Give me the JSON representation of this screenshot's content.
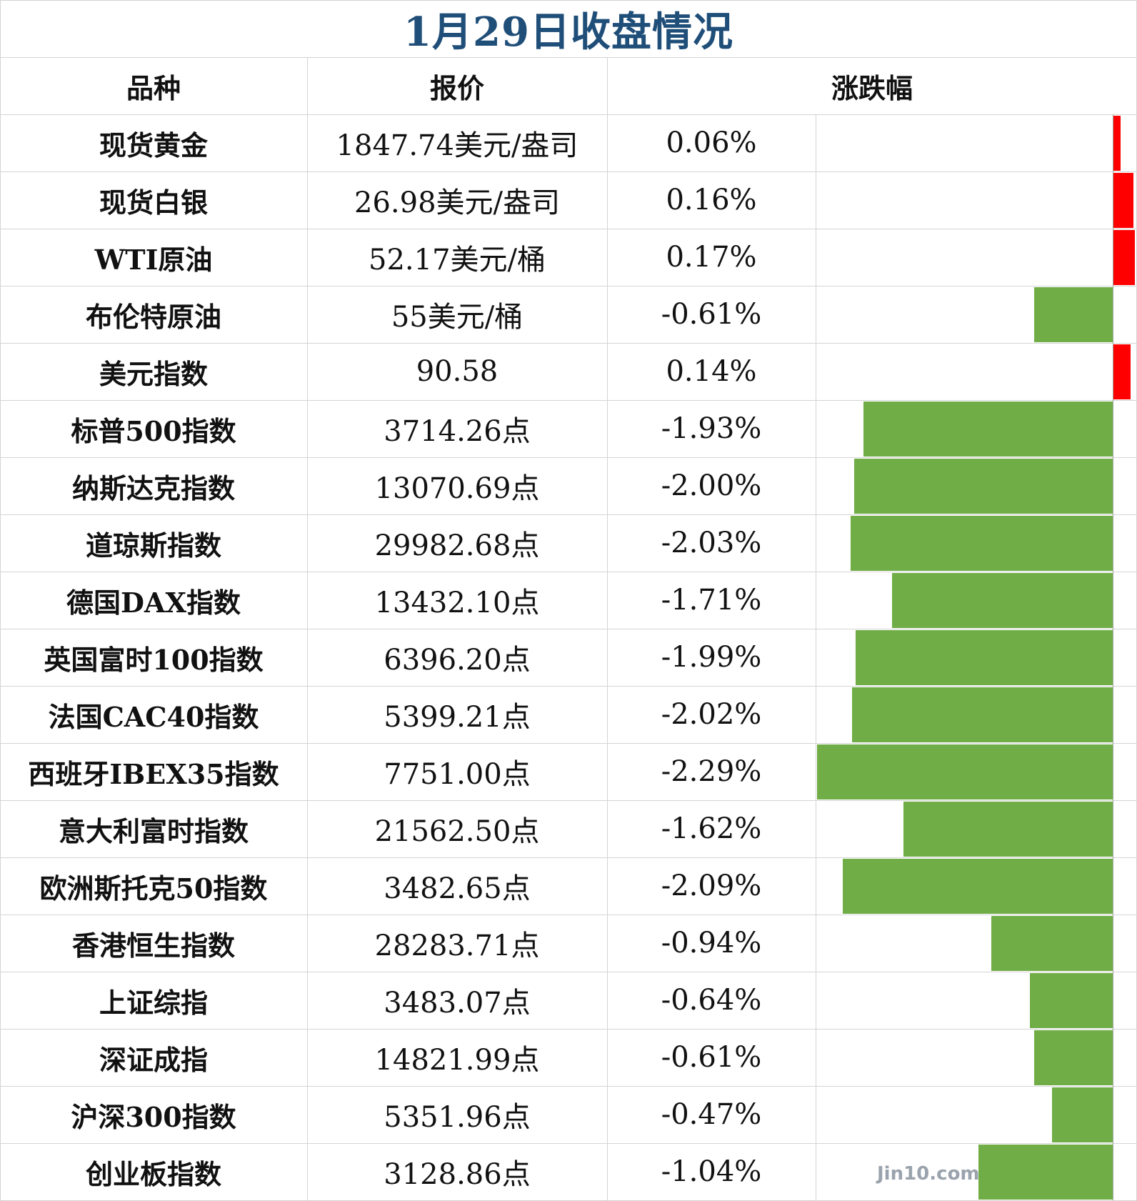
{
  "title": "1月29日收盘情况",
  "headers": {
    "name": "品种",
    "price": "报价",
    "change": "涨跌幅"
  },
  "colors": {
    "up": "#ff0000",
    "down": "#70ad47",
    "title": "#1f4e79",
    "grid": "#d4d4d4"
  },
  "watermark": "Jin10.com",
  "rows": [
    {
      "name": "现货黄金",
      "price": "1847.74美元/盎司",
      "pct_text": "0.06%"
    },
    {
      "name": "现货白银",
      "price": "26.98美元/盎司",
      "pct_text": "0.16%"
    },
    {
      "name": "WTI原油",
      "price": "52.17美元/桶",
      "pct_text": "0.17%"
    },
    {
      "name": "布伦特原油",
      "price": "55美元/桶",
      "pct_text": "-0.61%"
    },
    {
      "name": "美元指数",
      "price": "90.58",
      "pct_text": "0.14%"
    },
    {
      "name": "标普500指数",
      "price": "3714.26点",
      "pct_text": "-1.93%"
    },
    {
      "name": "纳斯达克指数",
      "price": "13070.69点",
      "pct_text": "-2.00%"
    },
    {
      "name": "道琼斯指数",
      "price": "29982.68点",
      "pct_text": "-2.03%"
    },
    {
      "name": "德国DAX指数",
      "price": "13432.10点",
      "pct_text": "-1.71%"
    },
    {
      "name": "英国富时100指数",
      "price": "6396.20点",
      "pct_text": "-1.99%"
    },
    {
      "name": "法国CAC40指数",
      "price": "5399.21点",
      "pct_text": "-2.02%"
    },
    {
      "name": "西班牙IBEX35指数",
      "price": "7751.00点",
      "pct_text": "-2.29%"
    },
    {
      "name": "意大利富时指数",
      "price": "21562.50点",
      "pct_text": "-1.62%"
    },
    {
      "name": "欧洲斯托克50指数",
      "price": "3482.65点",
      "pct_text": "-2.09%"
    },
    {
      "name": "香港恒生指数",
      "price": "28283.71点",
      "pct_text": "-0.94%"
    },
    {
      "name": "上证综指",
      "price": "3483.07点",
      "pct_text": "-0.64%"
    },
    {
      "name": "深证成指",
      "price": "14821.99点",
      "pct_text": "-0.61%"
    },
    {
      "name": "沪深300指数",
      "price": "5351.96点",
      "pct_text": "-0.47%"
    },
    {
      "name": "创业板指数",
      "price": "3128.86点",
      "pct_text": "-1.04%"
    }
  ],
  "chart_data": {
    "type": "bar",
    "orientation": "horizontal",
    "title": "1月29日收盘情况",
    "categories": [
      "现货黄金",
      "现货白银",
      "WTI原油",
      "布伦特原油",
      "美元指数",
      "标普500指数",
      "纳斯达克指数",
      "道琼斯指数",
      "德国DAX指数",
      "英国富时100指数",
      "法国CAC40指数",
      "西班牙IBEX35指数",
      "意大利富时指数",
      "欧洲斯托克50指数",
      "香港恒生指数",
      "上证综指",
      "深证成指",
      "沪深300指数",
      "创业板指数"
    ],
    "values": [
      0.06,
      0.16,
      0.17,
      -0.61,
      0.14,
      -1.93,
      -2.0,
      -2.03,
      -1.71,
      -1.99,
      -2.02,
      -2.29,
      -1.62,
      -2.09,
      -0.94,
      -0.64,
      -0.61,
      -0.47,
      -1.04
    ],
    "unit": "%",
    "positive_color": "#ff0000",
    "negative_color": "#70ad47",
    "xlim": [
      -2.29,
      0.17
    ]
  }
}
